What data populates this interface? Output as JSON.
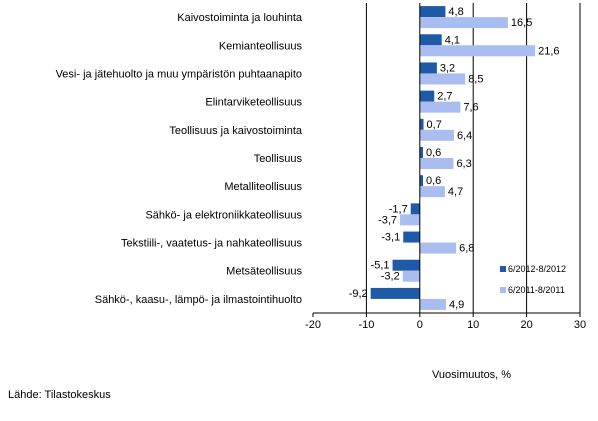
{
  "chart_data": {
    "type": "bar",
    "orientation": "horizontal",
    "categories": [
      "Kaivostoiminta ja louhinta",
      "Kemianteollisuus",
      "Vesi- ja jätehuolto ja muu ympäristön puhtaanapito",
      "Elintarviketeollisuus",
      "Teollisuus ja kaivostoiminta",
      "Teollisuus",
      "Metalliteollisuus",
      "Sähkö- ja elektroniikkateollisuus",
      "Tekstiili-, vaatetus- ja nahkateollisuus",
      "Metsäteollisuus",
      "Sähkö-, kaasu-, lämpö- ja ilmastointihuolto"
    ],
    "series": [
      {
        "name": "6/2012-8/2012",
        "color": "#1f5aa6",
        "values": [
          4.8,
          4.1,
          3.2,
          2.7,
          0.7,
          0.6,
          0.6,
          -1.7,
          -3.1,
          -5.1,
          -9.2
        ],
        "labels": [
          "4,8",
          "4,1",
          "3,2",
          "2,7",
          "0,7",
          "0,6",
          "0,6",
          "-1,7",
          "-3,1",
          "-5,1",
          "-9,2"
        ]
      },
      {
        "name": "6/2011-8/2011",
        "color": "#a9bdf0",
        "values": [
          16.5,
          21.6,
          8.5,
          7.6,
          6.4,
          6.3,
          4.7,
          -3.7,
          6.8,
          -3.2,
          4.9
        ],
        "labels": [
          "16,5",
          "21,6",
          "8,5",
          "7,6",
          "6,4",
          "6,3",
          "4,7",
          "-3,7",
          "6,8",
          "-3,2",
          "4,9"
        ]
      }
    ],
    "xlim": [
      -20,
      30
    ],
    "xticks": [
      -20,
      -10,
      0,
      10,
      20,
      30
    ],
    "xtick_labels": [
      "-20",
      "-10",
      "0",
      "10",
      "20",
      "30"
    ],
    "xlabel": "Vuosimuutos, %",
    "legend_position": "bottom-right"
  },
  "source": "Lähde: Tilastokeskus"
}
